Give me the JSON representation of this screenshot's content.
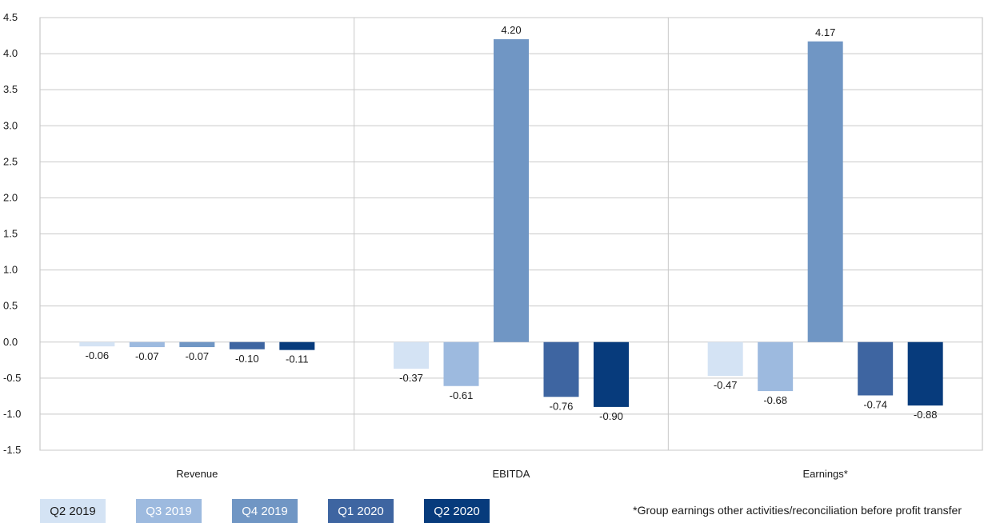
{
  "chart_data": {
    "type": "bar",
    "categories": [
      "Revenue",
      "EBITDA",
      "Earnings*"
    ],
    "series": [
      {
        "name": "Q2 2019",
        "color": "#d4e3f4",
        "text_color": "#1a1a1a",
        "values": [
          -0.06,
          -0.37,
          -0.47
        ],
        "labels": [
          "-0.06",
          "-0.37",
          "-0.47"
        ]
      },
      {
        "name": "Q3 2019",
        "color": "#9dbadf",
        "text_color": "#ffffff",
        "values": [
          -0.07,
          -0.61,
          -0.68
        ],
        "labels": [
          "-0.07",
          "-0.61",
          "-0.68"
        ]
      },
      {
        "name": "Q4 2019",
        "color": "#7096c4",
        "text_color": "#ffffff",
        "values": [
          -0.07,
          4.2,
          4.17
        ],
        "labels": [
          "-0.07",
          "4.20",
          "4.17"
        ]
      },
      {
        "name": "Q1 2020",
        "color": "#3e65a1",
        "text_color": "#ffffff",
        "values": [
          -0.1,
          -0.76,
          -0.74
        ],
        "labels": [
          "-0.10",
          "-0.76",
          "-0.74"
        ]
      },
      {
        "name": "Q2 2020",
        "color": "#073b7c",
        "text_color": "#ffffff",
        "values": [
          -0.11,
          -0.9,
          -0.88
        ],
        "labels": [
          "-0.11",
          "-0.90",
          "-0.88"
        ]
      }
    ],
    "ylim": [
      -1.5,
      4.5
    ],
    "yticks": [
      -1.5,
      -1.0,
      -0.5,
      0.0,
      0.5,
      1.0,
      1.5,
      2.0,
      2.5,
      3.0,
      3.5,
      4.0,
      4.5
    ],
    "ytick_labels": [
      "-1.5",
      "-1.0",
      "-0.5",
      "0.0",
      "0.5",
      "1.0",
      "1.5",
      "2.0",
      "2.5",
      "3.0",
      "3.5",
      "4.0",
      "4.5"
    ],
    "grid": true,
    "legend_position": "bottom-left"
  },
  "footnote": "*Group earnings other activities/reconciliation before profit transfer"
}
